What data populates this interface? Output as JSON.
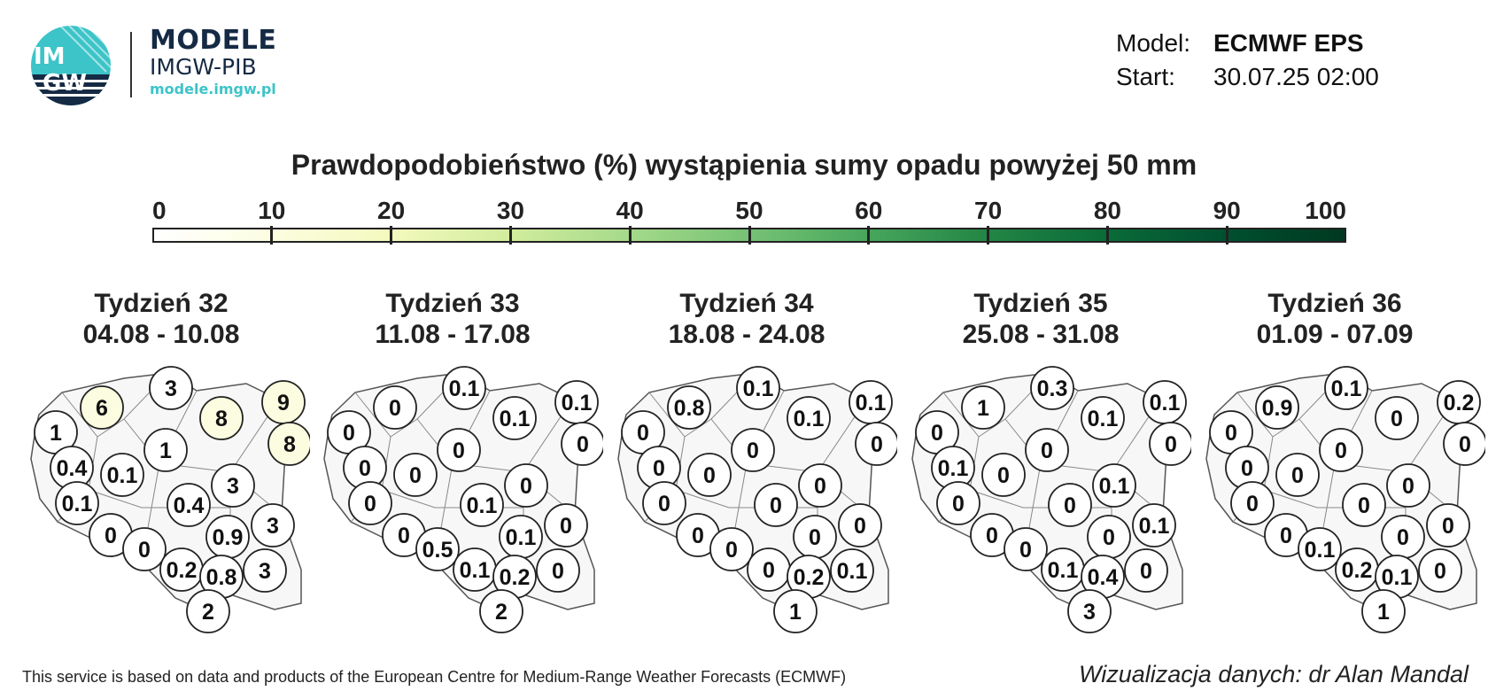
{
  "brand": {
    "logo_text": "IMGW",
    "line1": "MODELE",
    "line2": "IMGW-PIB",
    "url": "modele.imgw.pl",
    "accent_color": "#3cc4c8",
    "navy_color": "#152a44"
  },
  "meta": {
    "model_label": "Model:",
    "model_value": "ECMWF EPS",
    "start_label": "Start:",
    "start_value": "30.07.25 02:00"
  },
  "title": "Prawdopodobieństwo (%) wystąpienia sumy opadu powyżej 50 mm",
  "scale": {
    "ticks": [
      "0",
      "10",
      "20",
      "30",
      "40",
      "50",
      "60",
      "70",
      "80",
      "90",
      "100"
    ],
    "colors": [
      "#ffffff",
      "#fcfde0",
      "#f3f9bd",
      "#d1ec9c",
      "#a5d98a",
      "#76c275",
      "#47a65c",
      "#238545",
      "#0a6b38",
      "#005030",
      "#003821"
    ]
  },
  "weeks": [
    {
      "label": "Tydzień 32",
      "dates": "04.08 - 10.08",
      "values": [
        "6",
        "3",
        "1",
        "8",
        "9",
        "8",
        "0.4",
        "0.1",
        "1",
        "3",
        "0.1",
        "0.4",
        "3",
        "0",
        "0.9",
        "0",
        "0.2",
        "0.8",
        "3",
        "2"
      ]
    },
    {
      "label": "Tydzień 33",
      "dates": "11.08 - 17.08",
      "values": [
        "0",
        "0.1",
        "0",
        "0.1",
        "0.1",
        "0",
        "0",
        "0",
        "0",
        "0",
        "0",
        "0.1",
        "0",
        "0",
        "0.1",
        "0.5",
        "0.1",
        "0.2",
        "0",
        "2"
      ]
    },
    {
      "label": "Tydzień 34",
      "dates": "18.08 - 24.08",
      "values": [
        "0.8",
        "0.1",
        "0",
        "0.1",
        "0.1",
        "0",
        "0",
        "0",
        "0",
        "0",
        "0",
        "0",
        "0",
        "0",
        "0",
        "0",
        "0",
        "0.2",
        "0.1",
        "1"
      ]
    },
    {
      "label": "Tydzień 35",
      "dates": "25.08 - 31.08",
      "values": [
        "1",
        "0.3",
        "0",
        "0.1",
        "0.1",
        "0",
        "0.1",
        "0",
        "0",
        "0.1",
        "0",
        "0",
        "0.1",
        "0",
        "0",
        "0",
        "0.1",
        "0.4",
        "0",
        "3"
      ]
    },
    {
      "label": "Tydzień 36",
      "dates": "01.09 - 07.09",
      "values": [
        "0.9",
        "0.1",
        "0",
        "0",
        "0.2",
        "0",
        "0",
        "0",
        "0",
        "0",
        "0",
        "0",
        "0",
        "0",
        "0",
        "0.1",
        "0.2",
        "0.1",
        "0",
        "1"
      ]
    }
  ],
  "footer": {
    "source": "This service is based on data and products of the European Centre for Medium-Range Weather Forecasts (ECMWF)",
    "credit": "Wizualizacja danych: dr Alan Mandal"
  }
}
